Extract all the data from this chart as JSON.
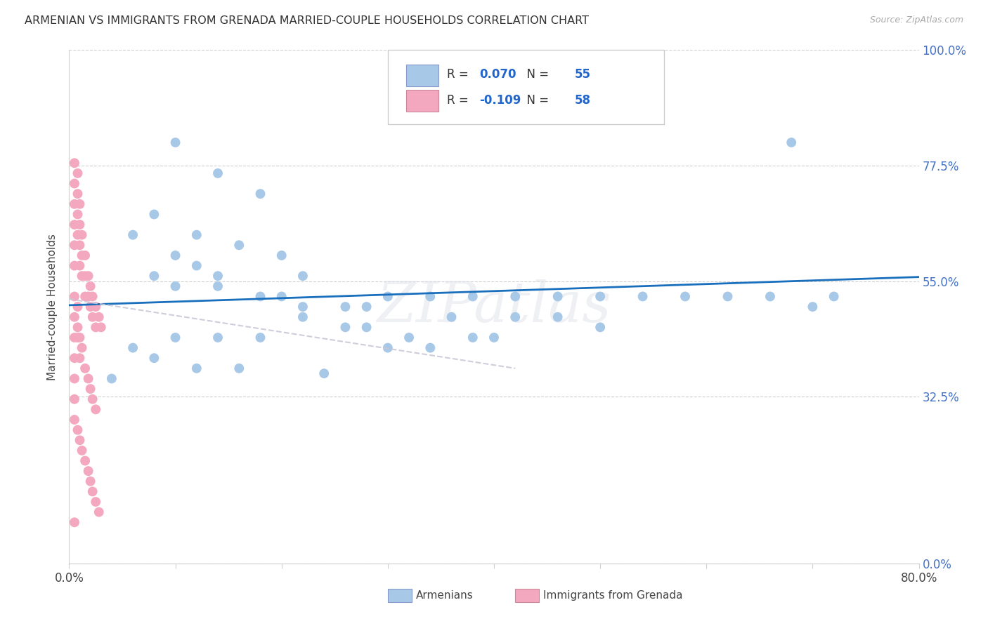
{
  "title": "ARMENIAN VS IMMIGRANTS FROM GRENADA MARRIED-COUPLE HOUSEHOLDS CORRELATION CHART",
  "source": "Source: ZipAtlas.com",
  "ylabel_label": "Married-couple Households",
  "legend_armenians": "Armenians",
  "legend_grenada": "Immigrants from Grenada",
  "R_armenians": 0.07,
  "N_armenians": 55,
  "R_grenada": -0.109,
  "N_grenada": 58,
  "color_armenians": "#a8c8e8",
  "color_grenada": "#f4a8c0",
  "trendline_armenians_color": "#1a6fbd",
  "trendline_grenada_color": "#c8c8d8",
  "watermark": "ZIPatlas",
  "xlim": [
    0.0,
    0.8
  ],
  "ylim": [
    0.0,
    1.0
  ],
  "y_tick_vals": [
    0.0,
    0.325,
    0.55,
    0.775,
    1.0
  ],
  "y_tick_labels": [
    "0.0%",
    "32.5%",
    "55.0%",
    "77.5%",
    "100.0%"
  ],
  "arm_trendline": [
    0.503,
    0.558
  ],
  "gren_trendline_x": [
    0.0,
    0.42
  ],
  "gren_trendline_y": [
    0.515,
    0.38
  ],
  "armenians_x": [
    0.38,
    0.1,
    0.14,
    0.18,
    0.08,
    0.06,
    0.12,
    0.16,
    0.2,
    0.1,
    0.12,
    0.14,
    0.08,
    0.22,
    0.1,
    0.14,
    0.18,
    0.22,
    0.26,
    0.2,
    0.28,
    0.3,
    0.34,
    0.38,
    0.42,
    0.46,
    0.5,
    0.54,
    0.58,
    0.62,
    0.66,
    0.7,
    0.42,
    0.46,
    0.5,
    0.28,
    0.32,
    0.36,
    0.22,
    0.26,
    0.18,
    0.14,
    0.1,
    0.3,
    0.34,
    0.38,
    0.06,
    0.08,
    0.12,
    0.16,
    0.04,
    0.68,
    0.72,
    0.4,
    0.24
  ],
  "armenians_y": [
    0.93,
    0.82,
    0.76,
    0.72,
    0.68,
    0.64,
    0.64,
    0.62,
    0.6,
    0.6,
    0.58,
    0.56,
    0.56,
    0.56,
    0.54,
    0.54,
    0.52,
    0.5,
    0.5,
    0.52,
    0.5,
    0.52,
    0.52,
    0.52,
    0.52,
    0.52,
    0.52,
    0.52,
    0.52,
    0.52,
    0.52,
    0.5,
    0.48,
    0.48,
    0.46,
    0.46,
    0.44,
    0.48,
    0.48,
    0.46,
    0.44,
    0.44,
    0.44,
    0.42,
    0.42,
    0.44,
    0.42,
    0.4,
    0.38,
    0.38,
    0.36,
    0.82,
    0.52,
    0.44,
    0.37
  ],
  "grenada_x": [
    0.005,
    0.005,
    0.005,
    0.005,
    0.005,
    0.005,
    0.008,
    0.008,
    0.008,
    0.008,
    0.01,
    0.01,
    0.01,
    0.01,
    0.012,
    0.012,
    0.012,
    0.015,
    0.015,
    0.015,
    0.018,
    0.018,
    0.02,
    0.02,
    0.022,
    0.022,
    0.025,
    0.025,
    0.028,
    0.03,
    0.005,
    0.005,
    0.005,
    0.005,
    0.008,
    0.008,
    0.01,
    0.01,
    0.012,
    0.015,
    0.018,
    0.02,
    0.022,
    0.025,
    0.005,
    0.005,
    0.005,
    0.008,
    0.01,
    0.012,
    0.015,
    0.018,
    0.02,
    0.022,
    0.025,
    0.028,
    0.005,
    0.008
  ],
  "grenada_y": [
    0.78,
    0.74,
    0.7,
    0.66,
    0.62,
    0.58,
    0.76,
    0.72,
    0.68,
    0.64,
    0.7,
    0.66,
    0.62,
    0.58,
    0.64,
    0.6,
    0.56,
    0.6,
    0.56,
    0.52,
    0.56,
    0.52,
    0.54,
    0.5,
    0.52,
    0.48,
    0.5,
    0.46,
    0.48,
    0.46,
    0.52,
    0.48,
    0.44,
    0.4,
    0.5,
    0.46,
    0.44,
    0.4,
    0.42,
    0.38,
    0.36,
    0.34,
    0.32,
    0.3,
    0.36,
    0.32,
    0.28,
    0.26,
    0.24,
    0.22,
    0.2,
    0.18,
    0.16,
    0.14,
    0.12,
    0.1,
    0.08,
    0.44
  ]
}
